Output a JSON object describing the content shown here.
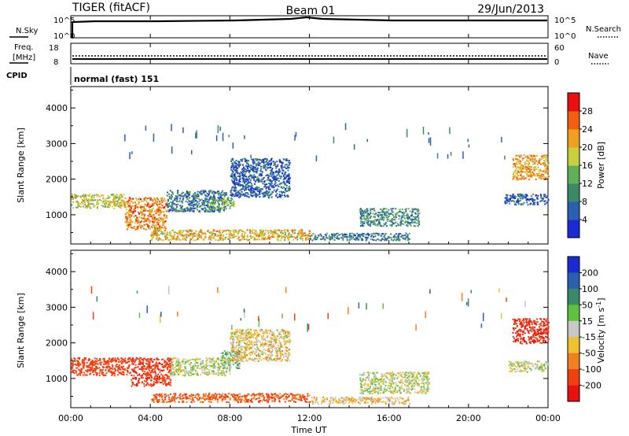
{
  "header": {
    "station": "TIGER (fitACF)",
    "beam": "Beam 01",
    "date": "29/Jun/2013"
  },
  "aux": {
    "nsky_label": "N.Sky",
    "nsearch_label": "N.Search",
    "nsky_ticks": [
      "10^5",
      "10^0"
    ],
    "freq_label": "Freq.",
    "freq_unit": "[MHz]",
    "freq_ticks": [
      "18",
      "8"
    ],
    "nave_label": "Nave",
    "nave_ticks": [
      "60",
      "0"
    ],
    "cpid_label": "CPID",
    "cpid_value": "normal (fast) 151"
  },
  "chart_data": [
    {
      "type": "heatmap",
      "quantity": "power",
      "ylabel": "Slant Range [km]",
      "xlabel": "",
      "ylim": [
        180,
        4600
      ],
      "yticks": [
        1000,
        2000,
        3000,
        4000
      ],
      "xlim": [
        0,
        24
      ],
      "colorbar": {
        "label": "Power [dB]",
        "ticks": [
          4,
          8,
          12,
          16,
          20,
          24,
          28
        ],
        "range": [
          0,
          32
        ],
        "colors": [
          "#1a2bd6",
          "#2b5fb0",
          "#3a8a6a",
          "#60b05a",
          "#c8d040",
          "#f0a020",
          "#f06010",
          "#e81010"
        ]
      },
      "regions": [
        {
          "t0": 0.0,
          "t1": 2.7,
          "r0": 1200,
          "r1": 1600,
          "value": 18
        },
        {
          "t0": 2.7,
          "t1": 4.8,
          "r0": 600,
          "r1": 1500,
          "value": 24
        },
        {
          "t0": 4.8,
          "t1": 7.8,
          "r0": 1100,
          "r1": 1700,
          "value": 8
        },
        {
          "t0": 7.0,
          "t1": 8.2,
          "r0": 1200,
          "r1": 1500,
          "value": 14
        },
        {
          "t0": 4.0,
          "t1": 12.0,
          "r0": 300,
          "r1": 600,
          "value": 20
        },
        {
          "t0": 8.0,
          "t1": 11.0,
          "r0": 1500,
          "r1": 2600,
          "value": 6
        },
        {
          "t0": 12.0,
          "t1": 17.0,
          "r0": 300,
          "r1": 500,
          "value": 8
        },
        {
          "t0": 14.5,
          "t1": 17.5,
          "r0": 700,
          "r1": 1200,
          "value": 10
        },
        {
          "t0": 22.2,
          "t1": 24.0,
          "r0": 2000,
          "r1": 2700,
          "value": 22
        },
        {
          "t0": 21.8,
          "t1": 24.0,
          "r0": 1300,
          "r1": 1600,
          "value": 5
        }
      ]
    },
    {
      "type": "heatmap",
      "quantity": "velocity",
      "ylabel": "Slant Range [km]",
      "xlabel": "Time UT",
      "ylim": [
        180,
        4600
      ],
      "yticks": [
        1000,
        2000,
        3000,
        4000
      ],
      "xlim": [
        0,
        24
      ],
      "xticks": [
        "00:00",
        "04:00",
        "08:00",
        "12:00",
        "16:00",
        "20:00",
        "00:00"
      ],
      "colorbar": {
        "label": "Velocity [m s",
        "label_sup": "-1",
        "label_end": "]",
        "ticks": [
          200,
          100,
          50,
          15,
          -15,
          -50,
          -100,
          -200
        ],
        "colors": [
          "#1a2bd6",
          "#2b5fb0",
          "#3a8a6a",
          "#60c040",
          "#c8c8c8",
          "#f0c030",
          "#f08020",
          "#f04010",
          "#e81010"
        ]
      },
      "regions": [
        {
          "t0": 0.0,
          "t1": 3.0,
          "r0": 1100,
          "r1": 1600,
          "value": -150
        },
        {
          "t0": 3.0,
          "t1": 5.0,
          "r0": 800,
          "r1": 1600,
          "value": -180
        },
        {
          "t0": 5.0,
          "t1": 8.0,
          "r0": 1100,
          "r1": 1600,
          "value": 0
        },
        {
          "t0": 7.5,
          "t1": 8.5,
          "r0": 1300,
          "r1": 1800,
          "value": 30
        },
        {
          "t0": 4.0,
          "t1": 12.0,
          "r0": 350,
          "r1": 600,
          "value": -110
        },
        {
          "t0": 8.0,
          "t1": 11.0,
          "r0": 1500,
          "r1": 2400,
          "value": -20
        },
        {
          "t0": 12.0,
          "t1": 17.0,
          "r0": 300,
          "r1": 500,
          "value": -30
        },
        {
          "t0": 14.5,
          "t1": 18.0,
          "r0": 600,
          "r1": 1200,
          "value": 0
        },
        {
          "t0": 22.2,
          "t1": 24.0,
          "r0": 2000,
          "r1": 2700,
          "value": -200
        },
        {
          "t0": 22.0,
          "t1": 24.0,
          "r0": 1200,
          "r1": 1500,
          "value": 0
        }
      ]
    }
  ]
}
